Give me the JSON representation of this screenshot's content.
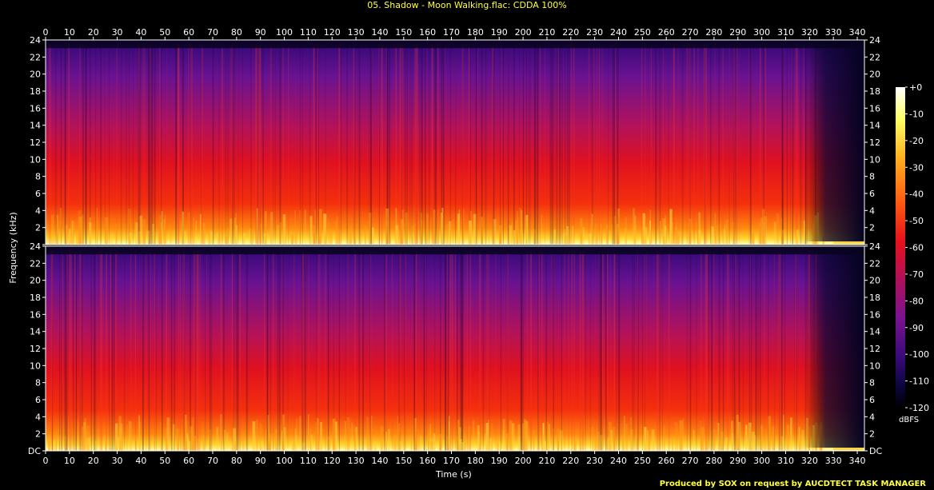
{
  "chart_data": {
    "type": "heatmap",
    "title": "05. Shadow - Moon Walking.flac: CDDA 100%",
    "xlabel": "Time (s)",
    "ylabel": "Frequency (kHz)",
    "xlim": [
      0,
      343
    ],
    "ylim": [
      0,
      24
    ],
    "x_ticks": [
      "0",
      "10",
      "20",
      "30",
      "40",
      "50",
      "60",
      "70",
      "80",
      "90",
      "100",
      "110",
      "120",
      "130",
      "140",
      "150",
      "160",
      "170",
      "180",
      "190",
      "200",
      "210",
      "220",
      "230",
      "240",
      "250",
      "260",
      "270",
      "280",
      "290",
      "300",
      "310",
      "320",
      "330",
      "340"
    ],
    "y_ticks": [
      "DC",
      "2",
      "4",
      "6",
      "8",
      "10",
      "12",
      "14",
      "16",
      "18",
      "20",
      "22",
      "24"
    ],
    "channels": 2,
    "colorbar": {
      "label": "dBFS",
      "range": [
        -120,
        0
      ],
      "ticks": [
        "+0",
        "-10",
        "-20",
        "-30",
        "-40",
        "-50",
        "-60",
        "-70",
        "-80",
        "-90",
        "-100",
        "-110",
        "-120"
      ]
    },
    "footer": "Produced by SOX on request by AUCDTECT TASK MANAGER",
    "colors": {
      "title": "#ffff3c",
      "footer": "#ffff3c",
      "axes": "#ffffff"
    }
  }
}
